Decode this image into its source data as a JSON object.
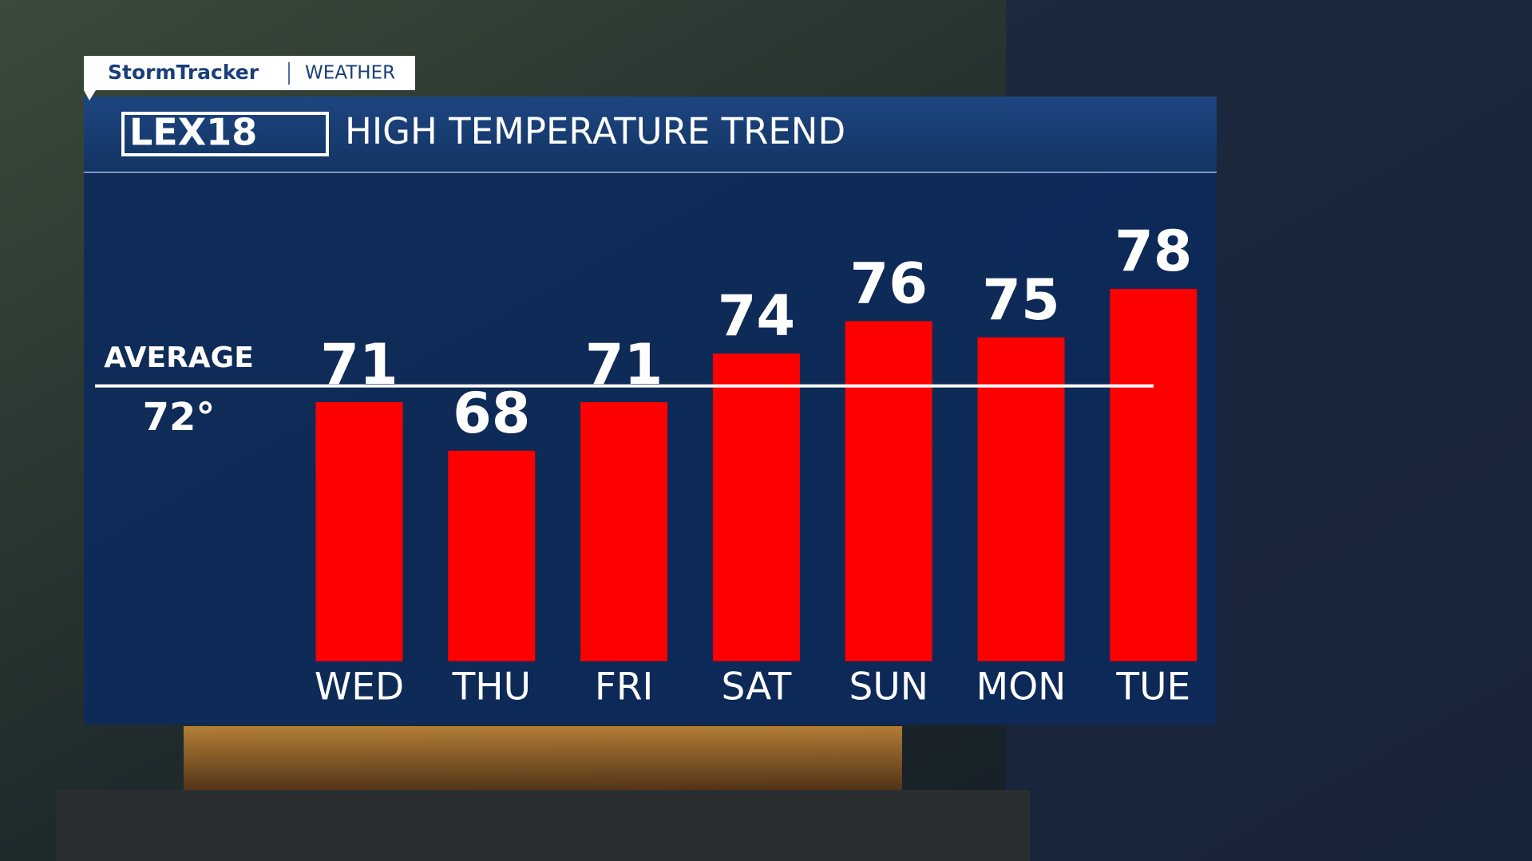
{
  "brand": {
    "show": "StormTracker",
    "section": "WEATHER",
    "station": "LEX18"
  },
  "chart_data": {
    "type": "bar",
    "title": "HIGH TEMPERATURE TREND",
    "categories": [
      "WED",
      "THU",
      "FRI",
      "SAT",
      "SUN",
      "MON",
      "TUE"
    ],
    "values": [
      71,
      68,
      71,
      74,
      76,
      75,
      78
    ],
    "color": "#ff0000",
    "ylim": [
      55,
      85
    ],
    "average_title": "AVERAGE",
    "average_line": {
      "value": 72,
      "label": "72°"
    }
  }
}
